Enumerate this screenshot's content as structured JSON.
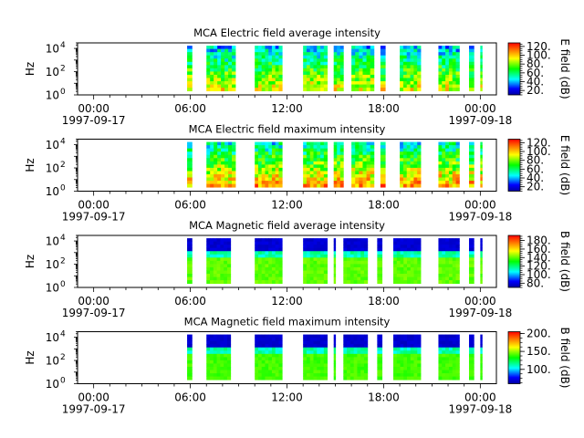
{
  "chart_data": [
    {
      "type": "heatmap",
      "title": "MCA  Electric field average intensity",
      "ylabel": "Hz",
      "y_scale": "log",
      "ylim": [
        1,
        30000
      ],
      "y_ticks": [
        {
          "value": 1,
          "base": "10",
          "exp": "0"
        },
        {
          "value": 100,
          "base": "10",
          "exp": "2"
        },
        {
          "value": 10000,
          "base": "10",
          "exp": "4"
        }
      ],
      "x_ticks": [
        {
          "hour": 0,
          "time": "00:00",
          "date": "1997-09-17"
        },
        {
          "hour": 6,
          "time": "06:00",
          "date": ""
        },
        {
          "hour": 12,
          "time": "12:00",
          "date": ""
        },
        {
          "hour": 18,
          "time": "18:00",
          "date": ""
        },
        {
          "hour": 24,
          "time": "00:00",
          "date": "1997-09-18"
        }
      ],
      "xlim": [
        -1,
        25
      ],
      "colorbar": {
        "label": "E field (dB)",
        "range": [
          10,
          128
        ],
        "ticks": [
          20,
          40,
          60,
          80,
          100,
          120
        ],
        "tick_labels": [
          "20.",
          "40.",
          "60.",
          "80.",
          "100.",
          "120."
        ]
      },
      "segments": [
        [
          5.8,
          6.1
        ],
        [
          7.0,
          8.8
        ],
        [
          10.0,
          11.7
        ],
        [
          13.0,
          14.5
        ],
        [
          14.9,
          15.5
        ],
        [
          16.0,
          17.4
        ],
        [
          17.8,
          18.1
        ],
        [
          19.0,
          20.3
        ],
        [
          21.4,
          22.7
        ],
        [
          23.3,
          23.6
        ],
        [
          24.0,
          24.1
        ]
      ],
      "intensity": {
        "base": 42,
        "peak": 92,
        "sharp": false,
        "spread": 35
      }
    },
    {
      "type": "heatmap",
      "title": "MCA  Electric field maximum intensity",
      "ylabel": "Hz",
      "y_scale": "log",
      "ylim": [
        1,
        30000
      ],
      "y_ticks": [
        {
          "value": 1,
          "base": "10",
          "exp": "0"
        },
        {
          "value": 100,
          "base": "10",
          "exp": "2"
        },
        {
          "value": 10000,
          "base": "10",
          "exp": "4"
        }
      ],
      "x_ticks": [
        {
          "hour": 0,
          "time": "00:00",
          "date": "1997-09-17"
        },
        {
          "hour": 6,
          "time": "06:00",
          "date": ""
        },
        {
          "hour": 12,
          "time": "12:00",
          "date": ""
        },
        {
          "hour": 18,
          "time": "18:00",
          "date": ""
        },
        {
          "hour": 24,
          "time": "00:00",
          "date": "1997-09-18"
        }
      ],
      "xlim": [
        -1,
        25
      ],
      "colorbar": {
        "label": "E field (dB)",
        "range": [
          10,
          128
        ],
        "ticks": [
          20,
          40,
          60,
          80,
          100,
          120
        ],
        "tick_labels": [
          "20.",
          "40.",
          "60.",
          "80.",
          "100.",
          "120."
        ]
      },
      "segments": [
        [
          5.8,
          6.1
        ],
        [
          7.0,
          8.8
        ],
        [
          10.0,
          11.7
        ],
        [
          13.0,
          14.5
        ],
        [
          14.9,
          15.5
        ],
        [
          16.0,
          17.4
        ],
        [
          17.8,
          18.1
        ],
        [
          19.0,
          20.3
        ],
        [
          21.4,
          22.7
        ],
        [
          23.3,
          23.6
        ],
        [
          24.0,
          24.1
        ]
      ],
      "intensity": {
        "base": 50,
        "peak": 105,
        "sharp": false,
        "spread": 38
      }
    },
    {
      "type": "heatmap",
      "title": "MCA  Magnetic field average intensity",
      "ylabel": "Hz",
      "y_scale": "log",
      "ylim": [
        1,
        30000
      ],
      "y_ticks": [
        {
          "value": 1,
          "base": "10",
          "exp": "0"
        },
        {
          "value": 100,
          "base": "10",
          "exp": "2"
        },
        {
          "value": 10000,
          "base": "10",
          "exp": "4"
        }
      ],
      "x_ticks": [
        {
          "hour": 0,
          "time": "00:00",
          "date": "1997-09-17"
        },
        {
          "hour": 6,
          "time": "06:00",
          "date": ""
        },
        {
          "hour": 12,
          "time": "12:00",
          "date": ""
        },
        {
          "hour": 18,
          "time": "18:00",
          "date": ""
        },
        {
          "hour": 24,
          "time": "00:00",
          "date": "1997-09-18"
        }
      ],
      "xlim": [
        -1,
        25
      ],
      "colorbar": {
        "label": "B field (dB)",
        "range": [
          70,
          192
        ],
        "ticks": [
          80,
          100,
          120,
          140,
          160,
          180
        ],
        "tick_labels": [
          "80.",
          "100.",
          "120.",
          "140.",
          "160.",
          "180."
        ]
      },
      "segments": [
        [
          5.8,
          6.1
        ],
        [
          7.0,
          8.5
        ],
        [
          10.0,
          11.7
        ],
        [
          13.0,
          14.5
        ],
        [
          14.9,
          15.0
        ],
        [
          15.5,
          17.0
        ],
        [
          17.6,
          17.9
        ],
        [
          18.6,
          20.3
        ],
        [
          21.4,
          22.7
        ],
        [
          23.3,
          23.6
        ],
        [
          24.0,
          24.1
        ]
      ],
      "intensity": {
        "base": 100,
        "peak": 140,
        "sharp": true,
        "spread": 0
      }
    },
    {
      "type": "heatmap",
      "title": "MCA  Magnetic field maximum intensity",
      "ylabel": "Hz",
      "y_scale": "log",
      "ylim": [
        1,
        30000
      ],
      "y_ticks": [
        {
          "value": 1,
          "base": "10",
          "exp": "0"
        },
        {
          "value": 100,
          "base": "10",
          "exp": "2"
        },
        {
          "value": 10000,
          "base": "10",
          "exp": "4"
        }
      ],
      "x_ticks": [
        {
          "hour": 0,
          "time": "00:00",
          "date": "1997-09-17"
        },
        {
          "hour": 6,
          "time": "06:00",
          "date": ""
        },
        {
          "hour": 12,
          "time": "12:00",
          "date": ""
        },
        {
          "hour": 18,
          "time": "18:00",
          "date": ""
        },
        {
          "hour": 24,
          "time": "00:00",
          "date": "1997-09-18"
        }
      ],
      "xlim": [
        -1,
        25
      ],
      "colorbar": {
        "label": "B field (dB)",
        "range": [
          60,
          205
        ],
        "ticks": [
          100,
          150,
          200
        ],
        "tick_labels": [
          "100.",
          "150.",
          "200."
        ]
      },
      "segments": [
        [
          5.8,
          6.1
        ],
        [
          7.0,
          8.5
        ],
        [
          10.0,
          11.7
        ],
        [
          13.0,
          14.5
        ],
        [
          14.9,
          15.0
        ],
        [
          15.5,
          17.0
        ],
        [
          17.6,
          17.9
        ],
        [
          18.6,
          20.3
        ],
        [
          21.4,
          22.7
        ],
        [
          23.3,
          23.6
        ],
        [
          24.0,
          24.1
        ]
      ],
      "intensity": {
        "base": 120,
        "peak": 140,
        "sharp": true,
        "spread": 0
      }
    }
  ]
}
